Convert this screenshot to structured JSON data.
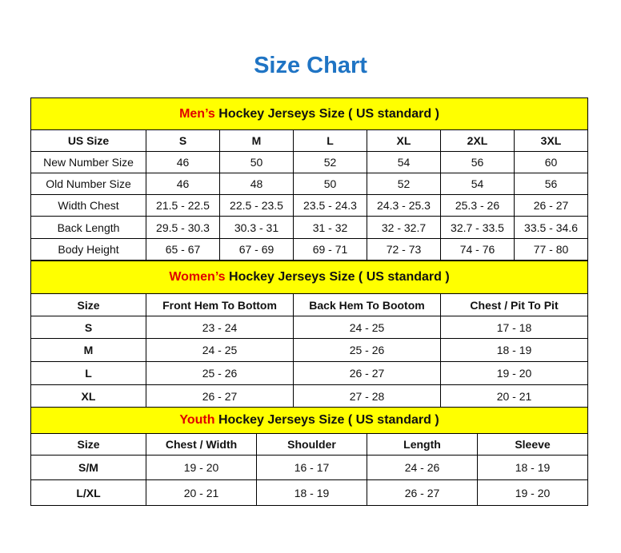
{
  "title": "Size Chart",
  "colors": {
    "title": "#1f74c4",
    "header_bg": "#ffff00",
    "accent_red": "#e00000"
  },
  "men": {
    "heading_prefix": "Men’s",
    "heading_rest": " Hockey Jerseys Size ( US standard )",
    "columns": [
      "US Size",
      "S",
      "M",
      "L",
      "XL",
      "2XL",
      "3XL"
    ],
    "rows": [
      [
        "New Number Size",
        "46",
        "50",
        "52",
        "54",
        "56",
        "60"
      ],
      [
        "Old Number Size",
        "46",
        "48",
        "50",
        "52",
        "54",
        "56"
      ],
      [
        "Width Chest",
        "21.5 - 22.5",
        "22.5 - 23.5",
        "23.5 - 24.3",
        "24.3 - 25.3",
        "25.3 - 26",
        "26 - 27"
      ],
      [
        "Back Length",
        "29.5 - 30.3",
        "30.3 - 31",
        "31 - 32",
        "32 - 32.7",
        "32.7 - 33.5",
        "33.5 - 34.6"
      ],
      [
        "Body Height",
        "65 - 67",
        "67 - 69",
        "69 - 71",
        "72 - 73",
        "74 - 76",
        "77 - 80"
      ]
    ]
  },
  "women": {
    "heading_prefix": "Women’s",
    "heading_rest": " Hockey Jerseys Size ( US standard )",
    "columns": [
      "Size",
      "Front Hem To Bottom",
      "Back Hem To Bootom",
      "Chest / Pit To Pit"
    ],
    "rows": [
      [
        "S",
        "23 - 24",
        "24 - 25",
        "17 - 18"
      ],
      [
        "M",
        "24 - 25",
        "25 - 26",
        "18 - 19"
      ],
      [
        "L",
        "25 - 26",
        "26 - 27",
        "19 - 20"
      ],
      [
        "XL",
        "26 - 27",
        "27 - 28",
        "20 - 21"
      ]
    ]
  },
  "youth": {
    "heading_prefix": "Youth",
    "heading_rest": " Hockey Jerseys Size ( US standard )",
    "columns": [
      "Size",
      "Chest / Width",
      "Shoulder",
      "Length",
      "Sleeve"
    ],
    "rows": [
      [
        "S/M",
        "19 - 20",
        "16 - 17",
        "24 - 26",
        "18 - 19"
      ],
      [
        "L/XL",
        "20 - 21",
        "18 - 19",
        "26 - 27",
        "19 - 20"
      ]
    ]
  }
}
